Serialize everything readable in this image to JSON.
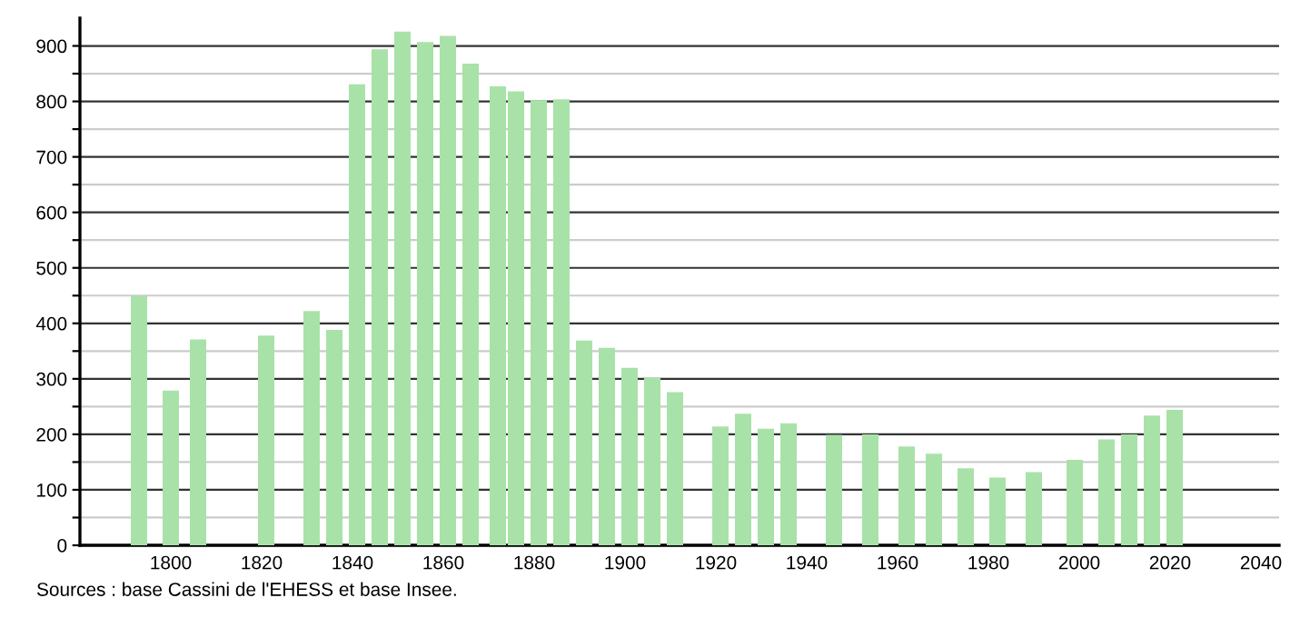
{
  "chart_data": {
    "type": "bar",
    "color": "#a8e2a8",
    "x": [
      1793,
      1800,
      1806,
      1821,
      1831,
      1836,
      1841,
      1846,
      1851,
      1856,
      1861,
      1866,
      1872,
      1876,
      1881,
      1886,
      1891,
      1896,
      1901,
      1906,
      1911,
      1921,
      1926,
      1931,
      1936,
      1946,
      1954,
      1962,
      1968,
      1975,
      1982,
      1990,
      1999,
      2006,
      2011,
      2016,
      2021
    ],
    "values": [
      449,
      279,
      371,
      378,
      422,
      388,
      831,
      894,
      926,
      907,
      918,
      868,
      827,
      818,
      802,
      804,
      369,
      356,
      320,
      302,
      276,
      214,
      237,
      210,
      220,
      199,
      200,
      178,
      165,
      139,
      122,
      132,
      154,
      191,
      200,
      234,
      244
    ],
    "xlim": [
      1780,
      2044
    ],
    "xticks": [
      1800,
      1820,
      1840,
      1860,
      1880,
      1900,
      1920,
      1940,
      1960,
      1980,
      2000,
      2020,
      2040
    ],
    "ylim": [
      0,
      950
    ],
    "yticks": [
      0,
      {
        "value": 50,
        "label": null
      },
      100,
      {
        "value": 150,
        "label": null
      },
      200,
      {
        "value": 250,
        "label": null
      },
      300,
      {
        "value": 350,
        "label": null
      },
      400,
      {
        "value": 450,
        "label": null
      },
      500,
      {
        "value": 550,
        "label": null
      },
      600,
      {
        "value": 650,
        "label": null
      },
      700,
      {
        "value": 750,
        "label": null
      },
      800,
      {
        "value": 850,
        "label": null
      },
      900
    ],
    "grid": "y",
    "annotations": [
      "Sources : base Cassini de l'EHESS et base Insee."
    ]
  }
}
